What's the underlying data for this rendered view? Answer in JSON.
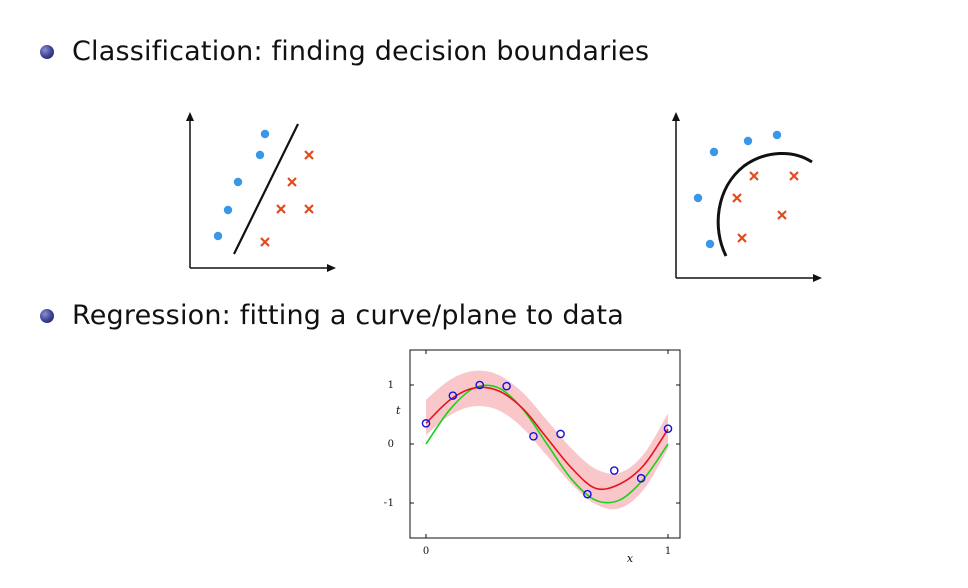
{
  "bullets": [
    {
      "text": "Classification: finding decision boundaries"
    },
    {
      "text": "Regression: fitting a curve/plane to data"
    }
  ],
  "colors": {
    "class_a": "#3a96e6",
    "class_b": "#e24a1e",
    "fit_curve": "#e8121b",
    "true_curve": "#18d418",
    "band": "#f9c7c9",
    "points": "#1010e0"
  },
  "diagrams": {
    "linear": {
      "boundary": "straight line",
      "markers": [
        "dot",
        "cross"
      ]
    },
    "curved": {
      "boundary": "curved arc",
      "markers": [
        "dot",
        "cross"
      ]
    }
  },
  "chart_data": {
    "type": "line",
    "xlabel": "x",
    "ylabel": "t",
    "xlim": [
      0,
      1
    ],
    "ylim": [
      -1.35,
      1.45
    ],
    "x_ticks": [
      "0",
      "1"
    ],
    "y_ticks": [
      "1",
      "0",
      "−1"
    ],
    "series": [
      {
        "kind": "band",
        "x": [
          0,
          0.1,
          0.2,
          0.3,
          0.4,
          0.5,
          0.6,
          0.7,
          0.8,
          0.9,
          1.0
        ],
        "y": [
          0.45,
          0.79,
          0.94,
          0.87,
          0.57,
          0.1,
          -0.37,
          -0.72,
          -0.79,
          -0.47,
          0.22
        ],
        "band_halfwidth": 0.3
      },
      {
        "kind": "fit",
        "x": [
          0,
          0.1,
          0.2,
          0.3,
          0.4,
          0.5,
          0.6,
          0.7,
          0.8,
          0.9,
          1.0
        ],
        "y": [
          0.35,
          0.75,
          0.95,
          0.9,
          0.6,
          0.1,
          -0.4,
          -0.75,
          -0.68,
          -0.36,
          0.25
        ]
      },
      {
        "kind": "true",
        "x": [
          0,
          0.1,
          0.2,
          0.3,
          0.4,
          0.5,
          0.6,
          0.7,
          0.8,
          0.9,
          1.0
        ],
        "y": [
          0,
          0.59,
          0.95,
          0.95,
          0.59,
          0,
          -0.59,
          -0.95,
          -0.95,
          -0.59,
          0
        ]
      }
    ],
    "points": {
      "x": [
        0.0,
        0.111,
        0.222,
        0.333,
        0.444,
        0.556,
        0.667,
        0.778,
        0.889,
        1.0
      ],
      "y": [
        0.35,
        0.82,
        1.0,
        0.98,
        0.13,
        0.17,
        -0.85,
        -0.45,
        -0.58,
        0.26
      ]
    }
  }
}
